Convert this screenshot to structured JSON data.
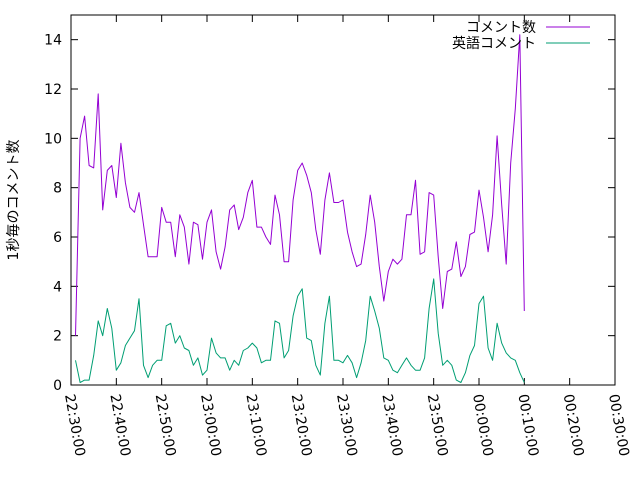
{
  "chart_data": {
    "type": "line",
    "ylabel": "1秒毎のコメント数",
    "xlabel": "",
    "ylim": [
      0,
      15
    ],
    "yticks": [
      "0",
      "2",
      "4",
      "6",
      "8",
      "10",
      "12",
      "14"
    ],
    "ytick_values": [
      0,
      2,
      4,
      6,
      8,
      10,
      12,
      14
    ],
    "xlim": [
      "22:30:00",
      "00:30:00"
    ],
    "xticks": [
      "22:30:00",
      "22:40:00",
      "22:50:00",
      "23:00:00",
      "23:10:00",
      "23:20:00",
      "23:30:00",
      "23:40:00",
      "23:50:00",
      "00:00:00",
      "00:10:00",
      "00:20:00",
      "00:30:00"
    ],
    "x_start": "22:31:00",
    "x_step": "1 min",
    "legend_position": "top-right",
    "grid": false,
    "series": [
      {
        "name": "コメント数",
        "color": "#9400d3",
        "values": [
          2.0,
          10.0,
          10.9,
          8.9,
          8.8,
          11.8,
          7.1,
          8.7,
          8.9,
          7.6,
          9.8,
          8.2,
          7.2,
          7.0,
          7.8,
          6.5,
          5.2,
          5.2,
          5.2,
          7.2,
          6.6,
          6.6,
          5.2,
          6.9,
          6.4,
          4.9,
          6.6,
          6.5,
          5.1,
          6.6,
          7.1,
          5.4,
          4.7,
          5.6,
          7.1,
          7.3,
          6.3,
          6.8,
          7.8,
          8.3,
          6.4,
          6.4,
          6.0,
          5.7,
          7.7,
          6.9,
          5.0,
          5.0,
          7.5,
          8.7,
          9.0,
          8.5,
          7.8,
          6.3,
          5.3,
          7.5,
          8.6,
          7.4,
          7.4,
          7.5,
          6.2,
          5.4,
          4.8,
          4.9,
          6.1,
          7.7,
          6.6,
          4.8,
          3.4,
          4.6,
          5.1,
          4.9,
          5.1,
          6.9,
          6.9,
          8.3,
          5.3,
          5.4,
          7.8,
          7.7,
          5.2,
          3.1,
          4.6,
          4.7,
          5.8,
          4.4,
          4.8,
          6.1,
          6.2,
          7.9,
          6.8,
          5.4,
          6.9,
          10.1,
          7.3,
          4.9,
          9.0,
          11.2,
          14.2,
          3.0
        ]
      },
      {
        "name": "英語コメント",
        "color": "#009e73",
        "values": [
          1.0,
          0.1,
          0.2,
          0.2,
          1.2,
          2.6,
          2.0,
          3.1,
          2.3,
          0.6,
          0.9,
          1.6,
          1.9,
          2.2,
          3.5,
          0.8,
          0.3,
          0.8,
          1.0,
          1.0,
          2.4,
          2.5,
          1.7,
          2.0,
          1.5,
          1.4,
          0.8,
          1.1,
          0.4,
          0.6,
          1.9,
          1.3,
          1.1,
          1.1,
          0.6,
          1.0,
          0.8,
          1.4,
          1.5,
          1.7,
          1.5,
          0.9,
          1.0,
          1.0,
          2.6,
          2.5,
          1.1,
          1.4,
          2.8,
          3.6,
          3.9,
          1.9,
          1.8,
          0.8,
          0.4,
          2.5,
          3.6,
          1.0,
          1.0,
          0.9,
          1.2,
          0.9,
          0.3,
          0.9,
          1.8,
          3.6,
          3.0,
          2.3,
          1.1,
          1.0,
          0.6,
          0.5,
          0.8,
          1.1,
          0.8,
          0.6,
          0.6,
          1.1,
          3.1,
          4.3,
          2.1,
          0.8,
          1.0,
          0.8,
          0.2,
          0.1,
          0.5,
          1.2,
          1.6,
          3.3,
          3.6,
          1.5,
          1.0,
          2.5,
          1.7,
          1.3,
          1.1,
          1.0,
          0.5,
          0.1
        ]
      }
    ]
  }
}
